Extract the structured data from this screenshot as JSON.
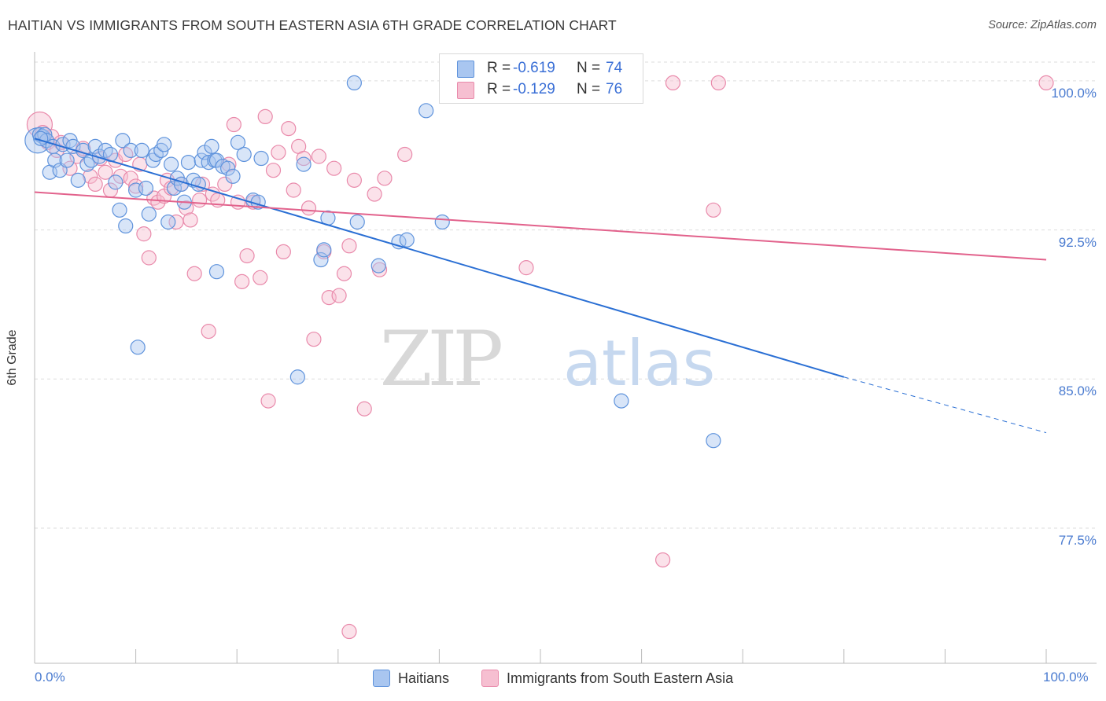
{
  "title": "HAITIAN VS IMMIGRANTS FROM SOUTH EASTERN ASIA 6TH GRADE CORRELATION CHART",
  "source": "Source: ZipAtlas.com",
  "watermark": {
    "zip": "ZIP",
    "atlas": "atlas"
  },
  "colors": {
    "blue_fill": "#a9c6f0",
    "blue_stroke": "#5f93dc",
    "blue_line": "#2a6fd4",
    "pink_fill": "#f6bfd1",
    "pink_stroke": "#e98aab",
    "pink_line": "#e2628c",
    "tick_text": "#4a7bd0"
  },
  "legend": {
    "rows": [
      {
        "r_label": "R =",
        "r_value": "-0.619",
        "n_label": "N =",
        "n_value": "74"
      },
      {
        "r_label": "R =",
        "r_value": "-0.129",
        "n_label": "N =",
        "n_value": "76"
      }
    ]
  },
  "bottom_legend": {
    "series1": "Haitians",
    "series2": "Immigrants from South Eastern Asia"
  },
  "chart_data": {
    "type": "scatter",
    "title": "HAITIAN VS IMMIGRANTS FROM SOUTH EASTERN ASIA 6TH GRADE CORRELATION CHART",
    "xlabel": "",
    "ylabel": "6th Grade",
    "xlim": [
      0,
      100
    ],
    "ylim": [
      70.7,
      101.3
    ],
    "x_tick_labels": [
      "0.0%",
      "100.0%"
    ],
    "y_ticks": [
      {
        "value": 77.5,
        "label": "77.5%"
      },
      {
        "value": 85.0,
        "label": "85.0%"
      },
      {
        "value": 92.5,
        "label": "92.5%"
      },
      {
        "value": 100.0,
        "label": "100.0%"
      }
    ],
    "grid": true,
    "series": [
      {
        "name": "Haitians",
        "r": -0.619,
        "n": 74,
        "trend": {
          "x0": 0,
          "y0": 97.1,
          "x1": 80,
          "y1": 85.1,
          "dash_to_x": 100,
          "dash_to_y": 82.3
        },
        "points": [
          [
            0.3,
            97.0
          ],
          [
            0.5,
            97.3
          ],
          [
            0.8,
            97.2
          ],
          [
            1.0,
            97.3
          ],
          [
            1.2,
            97.0
          ],
          [
            1.5,
            95.4
          ],
          [
            1.8,
            96.7
          ],
          [
            2.0,
            96.0
          ],
          [
            2.5,
            95.5
          ],
          [
            2.8,
            96.8
          ],
          [
            3.2,
            96.0
          ],
          [
            3.5,
            97.0
          ],
          [
            3.8,
            96.7
          ],
          [
            4.3,
            95.0
          ],
          [
            4.8,
            96.5
          ],
          [
            5.2,
            95.8
          ],
          [
            5.6,
            96.0
          ],
          [
            6.0,
            96.7
          ],
          [
            6.4,
            96.2
          ],
          [
            7.0,
            96.5
          ],
          [
            7.5,
            96.3
          ],
          [
            8.0,
            94.9
          ],
          [
            8.4,
            93.5
          ],
          [
            8.7,
            97.0
          ],
          [
            9.0,
            92.7
          ],
          [
            9.5,
            96.5
          ],
          [
            10.0,
            94.5
          ],
          [
            10.2,
            86.6
          ],
          [
            10.6,
            96.5
          ],
          [
            11.0,
            94.6
          ],
          [
            11.3,
            93.3
          ],
          [
            11.7,
            96.0
          ],
          [
            12.0,
            96.3
          ],
          [
            12.5,
            96.5
          ],
          [
            12.8,
            96.8
          ],
          [
            13.2,
            92.9
          ],
          [
            13.5,
            95.8
          ],
          [
            13.8,
            94.6
          ],
          [
            14.1,
            95.1
          ],
          [
            14.5,
            94.8
          ],
          [
            14.8,
            93.9
          ],
          [
            15.2,
            95.9
          ],
          [
            15.7,
            95.0
          ],
          [
            16.2,
            94.8
          ],
          [
            16.5,
            96.0
          ],
          [
            16.8,
            96.4
          ],
          [
            17.2,
            95.9
          ],
          [
            17.5,
            96.7
          ],
          [
            17.8,
            96.0
          ],
          [
            18.0,
            96.0
          ],
          [
            18.0,
            90.4
          ],
          [
            18.6,
            95.7
          ],
          [
            19.1,
            95.6
          ],
          [
            19.6,
            95.2
          ],
          [
            20.1,
            96.9
          ],
          [
            20.7,
            96.3
          ],
          [
            21.6,
            94.0
          ],
          [
            22.1,
            93.9
          ],
          [
            22.4,
            96.1
          ],
          [
            26.0,
            85.1
          ],
          [
            26.6,
            95.8
          ],
          [
            28.3,
            91.0
          ],
          [
            28.6,
            91.5
          ],
          [
            29.0,
            93.1
          ],
          [
            31.6,
            99.9
          ],
          [
            31.9,
            92.9
          ],
          [
            34.0,
            90.7
          ],
          [
            36.0,
            91.9
          ],
          [
            36.8,
            92.0
          ],
          [
            38.7,
            98.5
          ],
          [
            40.3,
            92.9
          ],
          [
            58.0,
            83.9
          ],
          [
            67.1,
            81.9
          ],
          [
            0.6,
            97.1
          ]
        ]
      },
      {
        "name": "Immigrants from South Eastern Asia",
        "r": -0.129,
        "n": 76,
        "trend": {
          "x0": 0,
          "y0": 94.4,
          "x1": 100,
          "y1": 91.0
        },
        "points": [
          [
            0.5,
            97.8
          ],
          [
            0.8,
            97.4
          ],
          [
            1.3,
            96.9
          ],
          [
            1.7,
            97.2
          ],
          [
            2.2,
            96.5
          ],
          [
            2.6,
            96.9
          ],
          [
            3.5,
            95.6
          ],
          [
            4.2,
            96.2
          ],
          [
            4.8,
            96.6
          ],
          [
            5.5,
            95.2
          ],
          [
            6.0,
            94.8
          ],
          [
            6.5,
            96.1
          ],
          [
            7.0,
            95.4
          ],
          [
            7.5,
            94.5
          ],
          [
            8.0,
            96.0
          ],
          [
            8.5,
            95.2
          ],
          [
            9.0,
            96.3
          ],
          [
            9.5,
            95.1
          ],
          [
            10.0,
            94.7
          ],
          [
            10.4,
            95.8
          ],
          [
            10.8,
            92.3
          ],
          [
            11.3,
            91.1
          ],
          [
            11.8,
            94.1
          ],
          [
            12.2,
            93.9
          ],
          [
            12.8,
            94.2
          ],
          [
            13.1,
            95.0
          ],
          [
            13.5,
            94.6
          ],
          [
            14.0,
            92.9
          ],
          [
            14.5,
            94.8
          ],
          [
            15.0,
            93.6
          ],
          [
            15.4,
            93.0
          ],
          [
            15.8,
            90.3
          ],
          [
            16.3,
            94.0
          ],
          [
            16.6,
            94.8
          ],
          [
            17.2,
            87.4
          ],
          [
            17.6,
            94.3
          ],
          [
            18.1,
            94.0
          ],
          [
            18.8,
            94.8
          ],
          [
            19.2,
            95.8
          ],
          [
            19.7,
            97.8
          ],
          [
            20.1,
            93.9
          ],
          [
            20.5,
            89.9
          ],
          [
            21.0,
            91.2
          ],
          [
            21.6,
            93.9
          ],
          [
            22.3,
            90.1
          ],
          [
            22.8,
            98.2
          ],
          [
            23.1,
            83.9
          ],
          [
            23.6,
            95.5
          ],
          [
            24.1,
            96.4
          ],
          [
            24.6,
            91.4
          ],
          [
            25.1,
            97.6
          ],
          [
            25.6,
            94.5
          ],
          [
            26.1,
            96.7
          ],
          [
            26.6,
            96.1
          ],
          [
            27.1,
            93.6
          ],
          [
            27.6,
            87.0
          ],
          [
            28.1,
            96.2
          ],
          [
            28.6,
            91.4
          ],
          [
            29.1,
            89.1
          ],
          [
            29.6,
            95.6
          ],
          [
            30.1,
            89.2
          ],
          [
            30.6,
            90.3
          ],
          [
            31.1,
            91.7
          ],
          [
            31.6,
            95.0
          ],
          [
            32.6,
            83.5
          ],
          [
            33.6,
            94.3
          ],
          [
            34.1,
            90.5
          ],
          [
            34.6,
            95.1
          ],
          [
            36.6,
            96.3
          ],
          [
            48.6,
            90.6
          ],
          [
            62.1,
            75.9
          ],
          [
            63.1,
            99.9
          ],
          [
            67.1,
            93.5
          ],
          [
            67.6,
            99.9
          ],
          [
            100.0,
            99.9
          ],
          [
            31.1,
            72.3
          ]
        ]
      }
    ]
  }
}
